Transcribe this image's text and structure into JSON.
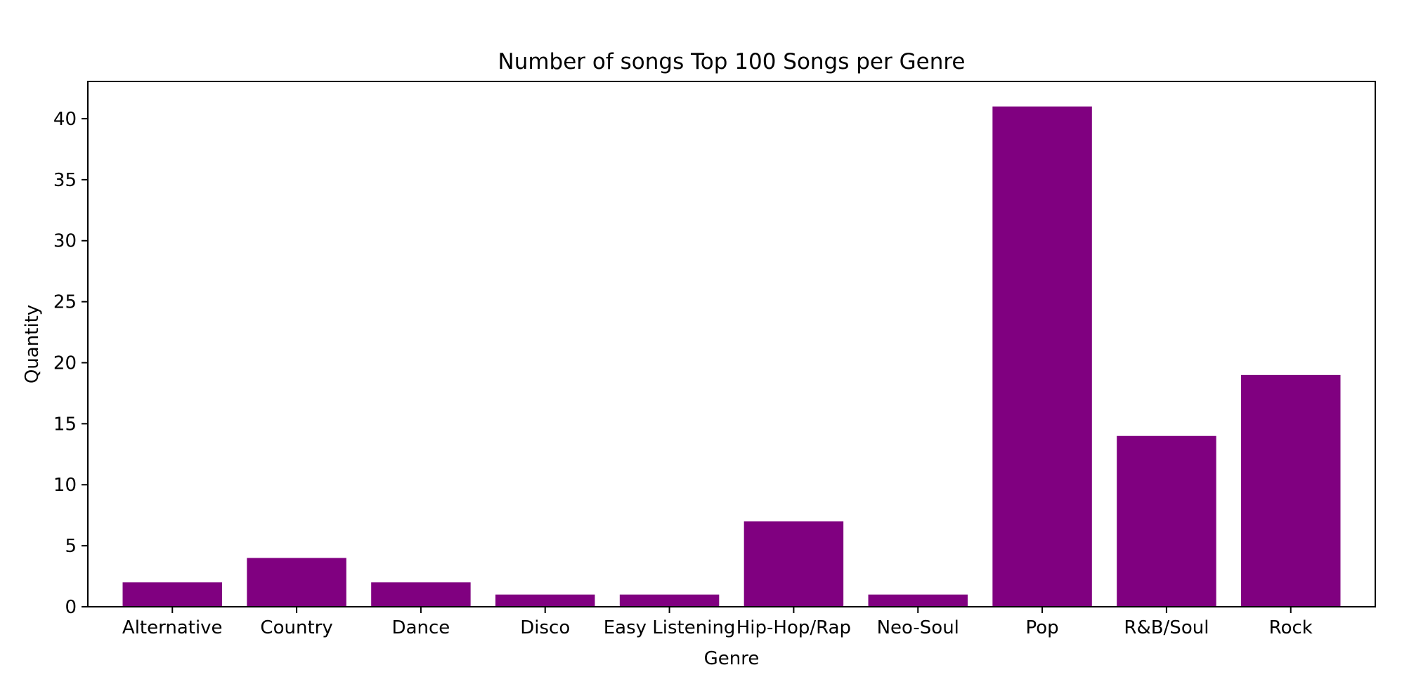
{
  "chart_data": {
    "type": "bar",
    "title": "Number of songs Top 100 Songs per Genre",
    "xlabel": "Genre",
    "ylabel": "Quantity",
    "categories": [
      "Alternative",
      "Country",
      "Dance",
      "Disco",
      "Easy Listening",
      "Hip-Hop/Rap",
      "Neo-Soul",
      "Pop",
      "R&B/Soul",
      "Rock"
    ],
    "values": [
      2,
      4,
      2,
      1,
      1,
      7,
      1,
      41,
      14,
      19
    ],
    "ylim": [
      0,
      43.05
    ],
    "yticks": [
      0,
      5,
      10,
      15,
      20,
      25,
      30,
      35,
      40
    ],
    "bar_color": "#800080",
    "grid": false,
    "legend": "none"
  }
}
